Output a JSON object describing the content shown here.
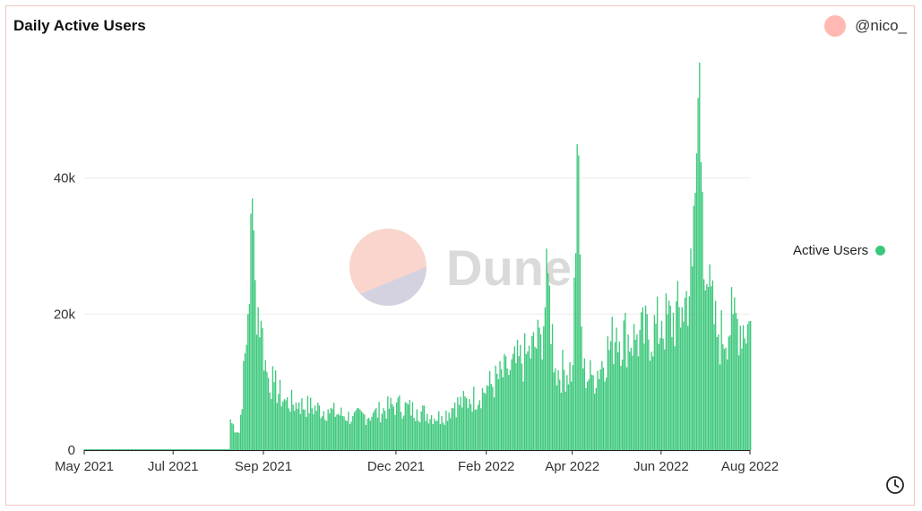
{
  "header": {
    "title": "Daily Active Users",
    "author": "@nico_"
  },
  "watermark": {
    "text": "Dune"
  },
  "legend": {
    "label": "Active Users"
  },
  "colors": {
    "bar": "#3cc87b",
    "grid": "#ececec",
    "avatar": "#ffb9b2",
    "border": "#f1c6c2"
  },
  "icons": {
    "avatar": "avatar-circle",
    "footer": "clock-icon"
  },
  "chart_data": {
    "type": "bar",
    "title": "Daily Active Users",
    "xlabel": "",
    "ylabel": "",
    "x_start": "2021-05-01",
    "x_end": "2022-08-01",
    "ylim": [
      0,
      60000
    ],
    "yticks": [
      0,
      20000,
      40000
    ],
    "ytick_labels": [
      "0",
      "20k",
      "40k"
    ],
    "xtick_labels": [
      "May 2021",
      "Jul 2021",
      "Sep 2021",
      "Dec 2021",
      "Feb 2022",
      "Apr 2022",
      "Jun 2022",
      "Aug 2022"
    ],
    "xtick_dates": [
      "2021-05-01",
      "2021-07-01",
      "2021-09-01",
      "2021-12-01",
      "2022-02-01",
      "2022-04-01",
      "2022-06-01",
      "2022-08-01"
    ],
    "grid": true,
    "legend_position": "right",
    "series": [
      {
        "name": "Active Users",
        "anchors": [
          [
            "2021-05-01",
            0
          ],
          [
            "2021-08-08",
            0
          ],
          [
            "2021-08-09",
            4500
          ],
          [
            "2021-08-15",
            2500
          ],
          [
            "2021-08-21",
            20000
          ],
          [
            "2021-08-24",
            37000
          ],
          [
            "2021-08-26",
            25000
          ],
          [
            "2021-08-30",
            19000
          ],
          [
            "2021-09-03",
            11500
          ],
          [
            "2021-09-08",
            10000
          ],
          [
            "2021-09-15",
            7500
          ],
          [
            "2021-09-25",
            7000
          ],
          [
            "2021-10-15",
            6000
          ],
          [
            "2021-11-01",
            5000
          ],
          [
            "2021-11-15",
            5500
          ],
          [
            "2021-12-01",
            7000
          ],
          [
            "2021-12-15",
            6000
          ],
          [
            "2022-01-01",
            5000
          ],
          [
            "2022-01-10",
            7000
          ],
          [
            "2022-01-20",
            7500
          ],
          [
            "2022-02-01",
            9500
          ],
          [
            "2022-02-15",
            12000
          ],
          [
            "2022-03-01",
            14500
          ],
          [
            "2022-03-10",
            17000
          ],
          [
            "2022-03-15",
            26000
          ],
          [
            "2022-03-20",
            12000
          ],
          [
            "2022-04-01",
            12500
          ],
          [
            "2022-04-04",
            45000
          ],
          [
            "2022-04-08",
            12000
          ],
          [
            "2022-04-15",
            11000
          ],
          [
            "2022-05-01",
            18000
          ],
          [
            "2022-05-15",
            17000
          ],
          [
            "2022-06-01",
            19000
          ],
          [
            "2022-06-15",
            21000
          ],
          [
            "2022-06-22",
            27000
          ],
          [
            "2022-06-27",
            57000
          ],
          [
            "2022-06-29",
            38000
          ],
          [
            "2022-07-03",
            24000
          ],
          [
            "2022-07-10",
            17000
          ],
          [
            "2022-07-20",
            20000
          ],
          [
            "2022-08-01",
            19000
          ]
        ]
      }
    ]
  }
}
